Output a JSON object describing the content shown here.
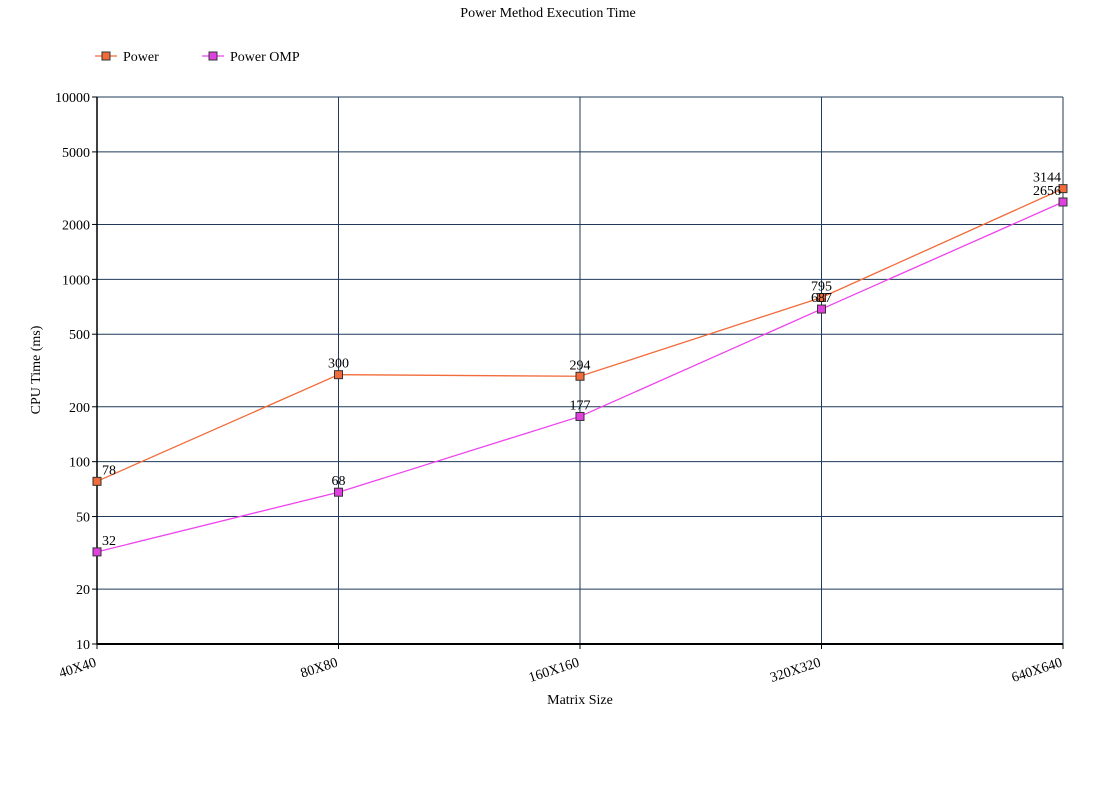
{
  "chart_data": {
    "type": "line",
    "title": "Power Method Execution Time",
    "xlabel": "Matrix Size",
    "ylabel": "CPU Time (ms)",
    "categories": [
      "40X40",
      "80X80",
      "160X160",
      "320X320",
      "640X640"
    ],
    "y_scale": "log",
    "ylim": [
      10,
      10000
    ],
    "y_ticks": [
      10,
      20,
      50,
      100,
      200,
      500,
      1000,
      2000,
      5000,
      10000
    ],
    "grid": true,
    "legend_position": "top-left",
    "series": [
      {
        "name": "Power",
        "values": [
          78,
          300,
          294,
          795,
          3144
        ],
        "color": "#f26b3a",
        "marker_fill": "#f26b3a"
      },
      {
        "name": "Power OMP",
        "values": [
          32,
          68,
          177,
          687,
          2656
        ],
        "color": "#ee44ee",
        "marker_fill": "#e040e0"
      }
    ],
    "colors": {
      "gridline": "#1f3a5a",
      "axis": "#000000"
    }
  }
}
